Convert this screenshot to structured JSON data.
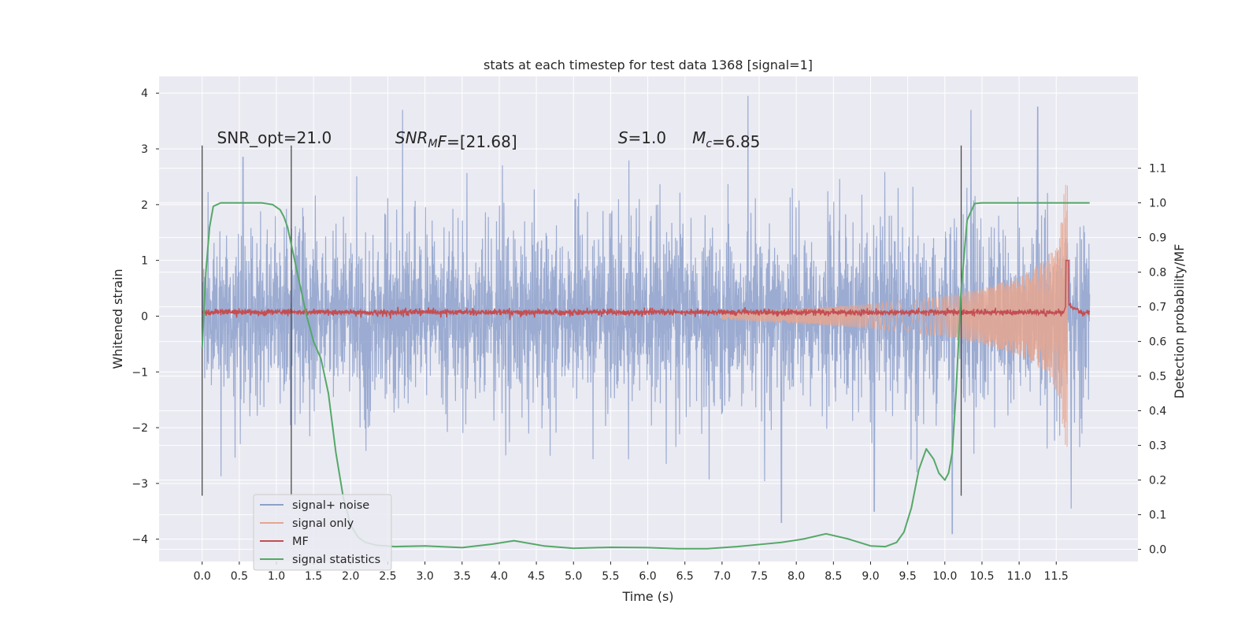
{
  "chart_data": {
    "type": "line",
    "title": "stats at each timestep for test data 1368 [signal=1]",
    "xlabel": "Time (s)",
    "ylabel": "Whitened strain",
    "y2label": "Detection probability/MF",
    "xlim": [
      -0.58,
      12.6
    ],
    "ylim": [
      -4.4,
      4.3
    ],
    "y2lim": [
      -0.035,
      1.365
    ],
    "xticks": [
      0.0,
      0.5,
      1.0,
      1.5,
      2.0,
      2.5,
      3.0,
      3.5,
      4.0,
      4.5,
      5.0,
      5.5,
      6.0,
      6.5,
      7.0,
      7.5,
      8.0,
      8.5,
      9.0,
      9.5,
      10.0,
      10.5,
      11.0,
      11.5
    ],
    "xtick_labels": [
      "0.0",
      "0.5",
      "1.0",
      "1.5",
      "2.0",
      "2.5",
      "3.0",
      "3.5",
      "4.0",
      "4.5",
      "5.0",
      "5.5",
      "6.0",
      "6.5",
      "7.0",
      "7.5",
      "8.0",
      "8.5",
      "9.0",
      "9.5",
      "10.0",
      "10.5",
      "11.0",
      "11.5"
    ],
    "yticks": [
      -4,
      -3,
      -2,
      -1,
      0,
      1,
      2,
      3,
      4
    ],
    "ytick_labels": [
      "−4",
      "−3",
      "−2",
      "−1",
      "0",
      "1",
      "2",
      "3",
      "4"
    ],
    "y2ticks": [
      0.0,
      0.1,
      0.2,
      0.3,
      0.4,
      0.5,
      0.6,
      0.7,
      0.8,
      0.9,
      1.0,
      1.1
    ],
    "y2tick_labels": [
      "0.0",
      "0.1",
      "0.2",
      "0.3",
      "0.4",
      "0.5",
      "0.6",
      "0.7",
      "0.8",
      "0.9",
      "1.0",
      "1.1"
    ],
    "grid": true,
    "legend": {
      "placement": "lower-left"
    },
    "annotations": [
      "SNR_opt=21.0",
      "SNR_MF=[21.68]",
      "S=1.0",
      "M_c=6.85"
    ],
    "annotation_x": [
      0.2,
      2.6,
      5.6,
      6.6
    ],
    "annotation_y": 3.1,
    "vlines": [
      {
        "x": 0.0,
        "ymin": -3.22,
        "ymax": 3.06
      },
      {
        "x": 1.2,
        "ymin": -3.22,
        "ymax": 3.06
      },
      {
        "x": 10.22,
        "ymin": -3.22,
        "ymax": 3.06
      }
    ],
    "series": [
      {
        "name": "signal+ noise",
        "color": "#8da0cb",
        "axis": "left",
        "x_range": [
          0.0,
          11.95
        ],
        "envelope_typical": 1.55,
        "spike_extremes": [
          {
            "x": 0.55,
            "y": 2.85
          },
          {
            "x": 2.7,
            "y": 3.7
          },
          {
            "x": 7.35,
            "y": 3.95
          },
          {
            "x": 10.35,
            "y": 3.7
          },
          {
            "x": 11.25,
            "y": 3.75
          },
          {
            "x": 7.8,
            "y": -3.7
          },
          {
            "x": 10.1,
            "y": -3.9
          },
          {
            "x": 11.7,
            "y": -3.45
          },
          {
            "x": 9.05,
            "y": -3.5
          }
        ]
      },
      {
        "name": "signal only",
        "color": "#e5a690",
        "axis": "left",
        "x_range": [
          7.0,
          11.65
        ],
        "amplitude": [
          {
            "x": 7.0,
            "y": 0.06
          },
          {
            "x": 8.0,
            "y": 0.14
          },
          {
            "x": 9.0,
            "y": 0.22
          },
          {
            "x": 10.0,
            "y": 0.36
          },
          {
            "x": 10.5,
            "y": 0.5
          },
          {
            "x": 11.0,
            "y": 0.7
          },
          {
            "x": 11.4,
            "y": 1.05
          },
          {
            "x": 11.55,
            "y": 1.5
          },
          {
            "x": 11.62,
            "y": 2.4
          }
        ]
      },
      {
        "name": "MF",
        "color": "#c44e52",
        "axis": "left",
        "x_range": [
          0.0,
          11.95
        ],
        "baseline": 0.07,
        "peak": {
          "x": 11.65,
          "y": 1.0
        }
      },
      {
        "name": "signal statistics",
        "color": "#55a868",
        "axis": "right",
        "x": [
          0.0,
          0.05,
          0.1,
          0.15,
          0.25,
          0.4,
          0.6,
          0.8,
          0.95,
          1.05,
          1.1,
          1.15,
          1.2,
          1.3,
          1.4,
          1.5,
          1.6,
          1.7,
          1.8,
          1.9,
          2.0,
          2.1,
          2.2,
          2.35,
          2.6,
          3.0,
          3.5,
          3.9,
          4.2,
          4.6,
          5.0,
          5.5,
          6.0,
          6.4,
          6.8,
          7.2,
          7.5,
          7.8,
          8.1,
          8.4,
          8.7,
          9.0,
          9.2,
          9.35,
          9.45,
          9.55,
          9.65,
          9.75,
          9.85,
          9.92,
          10.0,
          10.05,
          10.1,
          10.15,
          10.22,
          10.3,
          10.4,
          10.5,
          10.7,
          11.0,
          11.5,
          11.95
        ],
        "y": [
          0.58,
          0.8,
          0.93,
          0.99,
          1.0,
          1.0,
          1.0,
          1.0,
          0.995,
          0.98,
          0.96,
          0.93,
          0.88,
          0.78,
          0.68,
          0.6,
          0.55,
          0.45,
          0.28,
          0.15,
          0.07,
          0.035,
          0.02,
          0.012,
          0.008,
          0.01,
          0.005,
          0.015,
          0.025,
          0.01,
          0.003,
          0.006,
          0.005,
          0.002,
          0.002,
          0.008,
          0.014,
          0.02,
          0.03,
          0.045,
          0.03,
          0.01,
          0.008,
          0.02,
          0.05,
          0.12,
          0.23,
          0.29,
          0.26,
          0.22,
          0.2,
          0.22,
          0.28,
          0.45,
          0.75,
          0.95,
          0.998,
          1.0,
          1.0,
          1.0,
          1.0,
          1.0
        ]
      }
    ]
  }
}
